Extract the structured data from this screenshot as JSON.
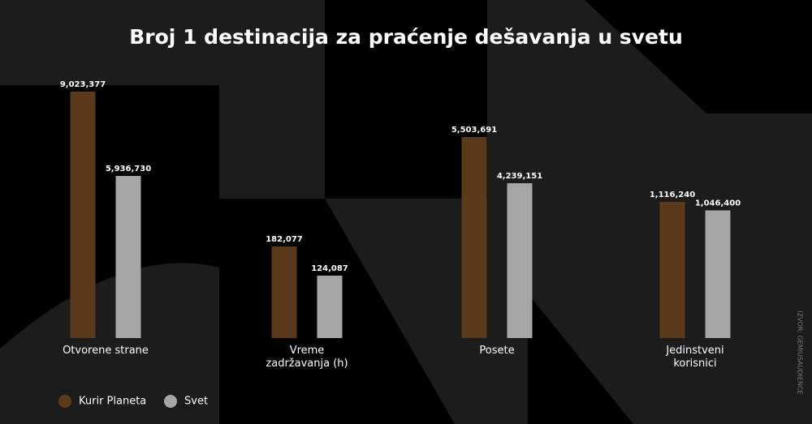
{
  "chart_data": {
    "type": "bar",
    "title": "Broj 1 destinacija za praćenje dešavanja u svetu",
    "categories": [
      "Otvorene strane",
      "Vreme zadržavanja (h)",
      "Posete",
      "Jedinstveni korisnici"
    ],
    "series": [
      {
        "name": "Kurir Planeta",
        "color": "#5b3a1b",
        "values": [
          9023377,
          182077,
          5503691,
          1116240
        ],
        "value_labels": [
          "9,023,377",
          "182,077",
          "5,503,691",
          "1,116,240"
        ]
      },
      {
        "name": "Svet",
        "color": "#a6a6a6",
        "values": [
          5936730,
          124087,
          4239151,
          1046400
        ],
        "value_labels": [
          "5,936,730",
          "124,087",
          "4,239,151",
          "1,046,400"
        ]
      }
    ],
    "source": "IZVOR: GEMIUSAUDIENCE"
  }
}
